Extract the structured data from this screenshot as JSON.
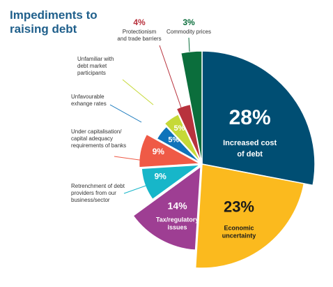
{
  "chart_data": {
    "type": "pie",
    "title": "Impediments to raising debt",
    "slices": [
      {
        "label": "Increased cost of debt",
        "value": 28,
        "display": "28%",
        "color": "#004e73"
      },
      {
        "label": "Economic uncertainty",
        "value": 23,
        "display": "23%",
        "color": "#fbba1e"
      },
      {
        "label": "Tax/regulatory issues",
        "value": 14,
        "display": "14%",
        "color": "#9e3e93"
      },
      {
        "label": "Retrenchment of debt providers from our business/sector",
        "value": 9,
        "display": "9%",
        "color": "#17b6c9"
      },
      {
        "label": "Under capitalisation/ capital adequacy requirements of banks",
        "value": 9,
        "display": "9%",
        "color": "#ef5a46"
      },
      {
        "label": "Unfavourable exhange rates",
        "value": 5,
        "display": "5%",
        "color": "#0f73ba"
      },
      {
        "label": "Unfamiliar with debt market participants",
        "value": 5,
        "display": "5%",
        "color": "#c6d938"
      },
      {
        "label": "Protectionism and trade barriers",
        "value": 4,
        "display": "4%",
        "color": "#b8323d"
      },
      {
        "label": "Commodity prices",
        "value": 3,
        "display": "3%",
        "color": "#0b6e3c"
      }
    ]
  }
}
